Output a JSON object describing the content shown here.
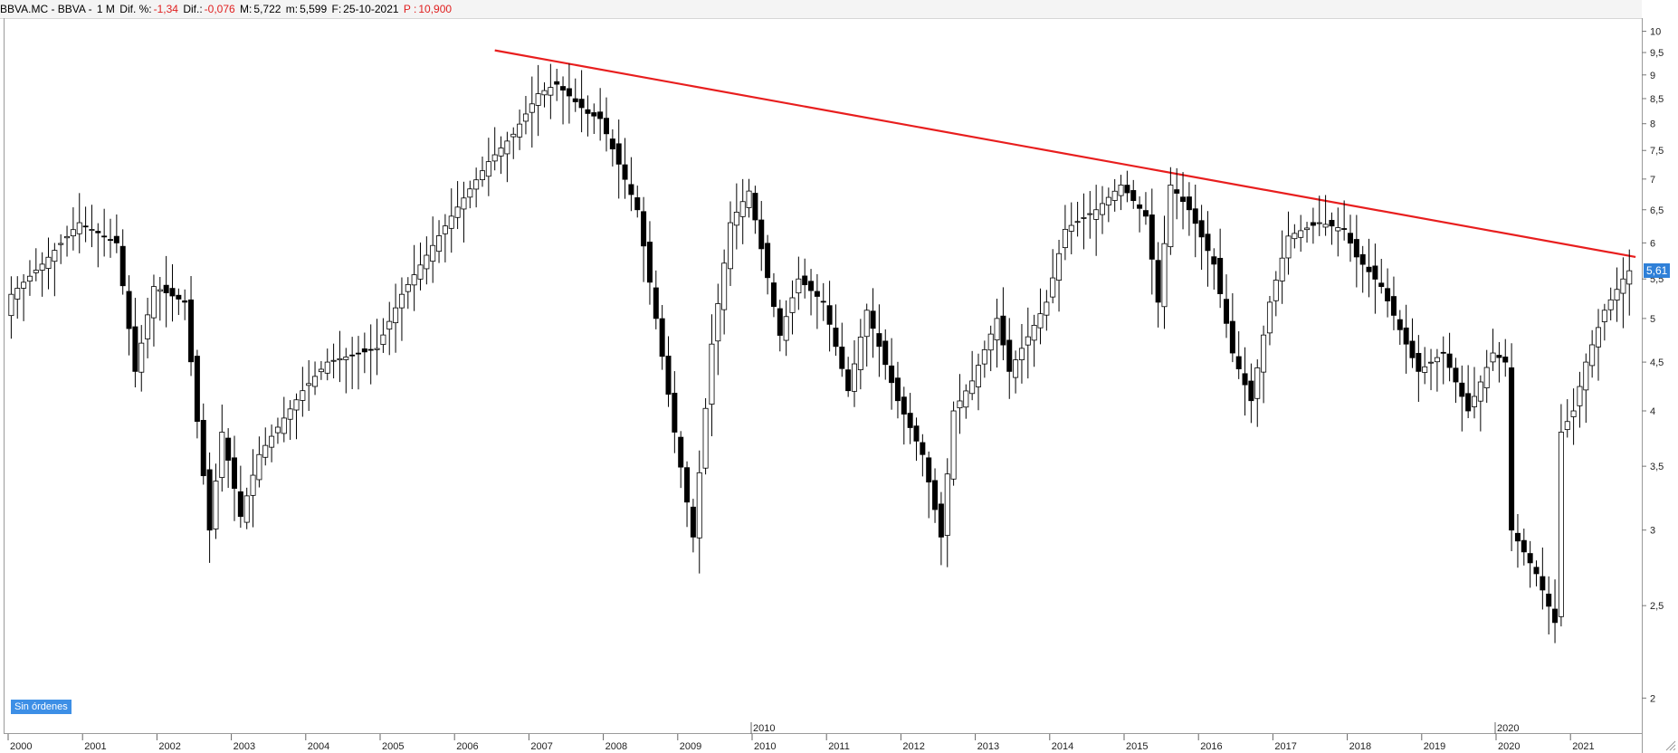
{
  "header": {
    "symbol": "BBVA.MC - BBVA -",
    "period": "1 M",
    "diff_pct_label": "Dif. %:",
    "diff_pct_value": "-1,34",
    "diff_label": "Dif.:",
    "diff_value": "-0,076",
    "max_label": "M:",
    "max_value": "5,722",
    "min_label": "m:",
    "min_value": "5,599",
    "date_label": "F:",
    "date_value": "25-10-2021",
    "p_label": "P :",
    "p_value": "10,900"
  },
  "orders_badge": "Sin órdenes",
  "price_tag": "5,61",
  "colors": {
    "up": "#ffffff",
    "down": "#000000",
    "trendline": "#e81e1e",
    "price_tag": "#2f80d8",
    "header_negative": "#e02020"
  },
  "chart_data": {
    "type": "candlestick",
    "frequency": "monthly",
    "yscale": "log",
    "ylim": [
      1.92,
      10.1
    ],
    "ytick_labels": [
      "10",
      "9,5",
      "9",
      "8,5",
      "8",
      "7,5",
      "7",
      "6,5",
      "6",
      "5,5",
      "5",
      "4,5",
      "4",
      "3,5",
      "3",
      "2,5",
      "2"
    ],
    "xtick_labels": [
      "2000",
      "2001",
      "2002",
      "2003",
      "2004",
      "2005",
      "2006",
      "2007",
      "2008",
      "2009",
      "2010",
      "2011",
      "2012",
      "2013",
      "2014",
      "2015",
      "2016",
      "2017",
      "2018",
      "2019",
      "2020",
      "2021"
    ],
    "decade_labels": [
      "2010",
      "2020"
    ],
    "trendline": {
      "from": {
        "date": "2006-07",
        "value": 9.55
      },
      "to": {
        "date": "2021-11",
        "value": 5.8
      }
    },
    "last_close": 5.61,
    "anchors": [
      [
        "2000-01",
        5.3
      ],
      [
        "2000-06",
        5.7
      ],
      [
        "2000-12",
        6.3
      ],
      [
        "2001-06",
        6.0
      ],
      [
        "2001-09",
        4.4
      ],
      [
        "2001-12",
        5.4
      ],
      [
        "2002-05",
        5.2
      ],
      [
        "2002-07",
        3.9
      ],
      [
        "2002-09",
        3.0
      ],
      [
        "2002-11",
        3.8
      ],
      [
        "2003-02",
        3.1
      ],
      [
        "2003-05",
        3.6
      ],
      [
        "2003-12",
        4.2
      ],
      [
        "2004-04",
        4.5
      ],
      [
        "2004-12",
        4.65
      ],
      [
        "2005-04",
        5.3
      ],
      [
        "2005-12",
        6.4
      ],
      [
        "2006-06",
        7.3
      ],
      [
        "2006-10",
        7.8
      ],
      [
        "2007-02",
        8.6
      ],
      [
        "2007-05",
        8.8
      ],
      [
        "2007-10",
        8.2
      ],
      [
        "2007-12",
        8.1
      ],
      [
        "2008-06",
        6.5
      ],
      [
        "2008-09",
        5.0
      ],
      [
        "2008-12",
        3.8
      ],
      [
        "2009-03",
        2.95
      ],
      [
        "2009-06",
        4.7
      ],
      [
        "2009-09",
        6.3
      ],
      [
        "2009-12",
        6.8
      ],
      [
        "2010-05",
        4.8
      ],
      [
        "2010-08",
        5.5
      ],
      [
        "2010-12",
        5.2
      ],
      [
        "2011-04",
        4.2
      ],
      [
        "2011-07",
        5.1
      ],
      [
        "2011-12",
        4.1
      ],
      [
        "2012-04",
        3.6
      ],
      [
        "2012-07",
        2.95
      ],
      [
        "2012-09",
        4.0
      ],
      [
        "2012-12",
        4.3
      ],
      [
        "2013-04",
        5.0
      ],
      [
        "2013-06",
        4.4
      ],
      [
        "2013-12",
        5.2
      ],
      [
        "2014-03",
        6.2
      ],
      [
        "2014-08",
        6.5
      ],
      [
        "2014-12",
        6.9
      ],
      [
        "2015-04",
        6.4
      ],
      [
        "2015-06",
        5.2
      ],
      [
        "2015-08",
        6.9
      ],
      [
        "2015-11",
        6.5
      ],
      [
        "2016-03",
        5.7
      ],
      [
        "2016-06",
        4.6
      ],
      [
        "2016-09",
        4.1
      ],
      [
        "2016-12",
        5.2
      ],
      [
        "2017-03",
        6.1
      ],
      [
        "2017-08",
        6.3
      ],
      [
        "2017-12",
        6.2
      ],
      [
        "2018-02",
        5.8
      ],
      [
        "2018-06",
        5.4
      ],
      [
        "2018-10",
        4.7
      ],
      [
        "2018-12",
        4.4
      ],
      [
        "2019-04",
        4.6
      ],
      [
        "2019-08",
        4.0
      ],
      [
        "2019-12",
        4.6
      ],
      [
        "2020-02",
        4.5
      ],
      [
        "2020-03",
        3.0
      ],
      [
        "2020-07",
        2.7
      ],
      [
        "2020-10",
        2.4
      ],
      [
        "2020-11",
        3.8
      ],
      [
        "2021-01",
        4.0
      ],
      [
        "2021-03",
        4.5
      ],
      [
        "2021-06",
        5.1
      ],
      [
        "2021-09",
        5.5
      ],
      [
        "2021-10",
        5.61
      ]
    ]
  }
}
